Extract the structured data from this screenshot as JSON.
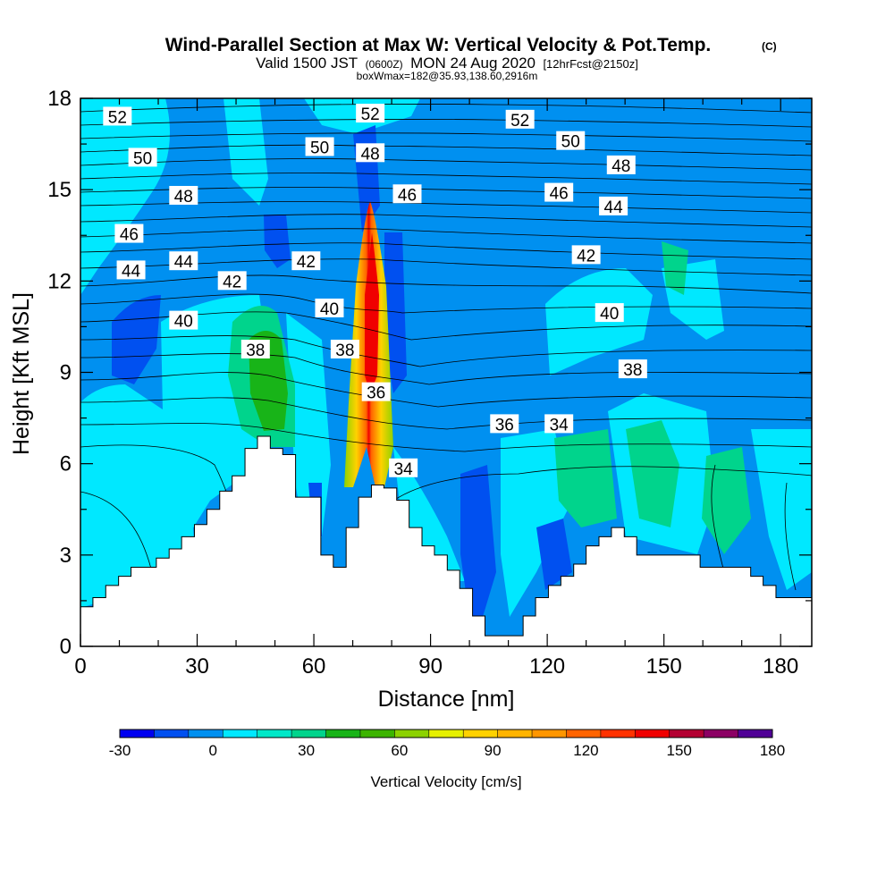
{
  "chart_data": {
    "type": "heatmap",
    "title": "Wind-Parallel Section at Max W: Vertical Velocity & Pot.Temp.",
    "title_mark": "(C)",
    "subtitle_parts": [
      "Valid 1500 JST",
      "(0600Z)",
      "MON 24 Aug 2020",
      "[12hrFcst@2150z]"
    ],
    "subtitle2": "boxWmax=182@35.93,138.60,2916m",
    "xlabel": "Distance [nm]",
    "ylabel": "Height [Kft MSL]",
    "xlim": [
      0,
      188
    ],
    "ylim": [
      0,
      18
    ],
    "x_ticks": [
      0,
      30,
      60,
      90,
      120,
      150,
      180
    ],
    "y_ticks": [
      0,
      3,
      6,
      9,
      12,
      15,
      18
    ],
    "colorbar": {
      "label": "Vertical Velocity [cm/s]",
      "range": [
        -30,
        180
      ],
      "tick_values": [
        -30,
        0,
        30,
        60,
        90,
        120,
        150,
        180
      ],
      "colors": [
        "#0000f0",
        "#0050f0",
        "#0090f0",
        "#00e8ff",
        "#00e8c8",
        "#00d48c",
        "#18b418",
        "#3cb400",
        "#8cd200",
        "#e6f000",
        "#ffd200",
        "#ffb400",
        "#ff9600",
        "#ff6400",
        "#ff3200",
        "#f00000",
        "#b40032",
        "#8c0064",
        "#500096"
      ]
    },
    "theta_labels": [
      {
        "value": "52",
        "x": 9.5,
        "y": 17.4
      },
      {
        "value": "52",
        "x": 74.5,
        "y": 17.5
      },
      {
        "value": "52",
        "x": 113,
        "y": 17.3
      },
      {
        "value": "50",
        "x": 16,
        "y": 16.05
      },
      {
        "value": "50",
        "x": 61.5,
        "y": 16.4
      },
      {
        "value": "48",
        "x": 74.5,
        "y": 16.2
      },
      {
        "value": "50",
        "x": 126,
        "y": 16.6
      },
      {
        "value": "48",
        "x": 139,
        "y": 15.8
      },
      {
        "value": "48",
        "x": 26.5,
        "y": 14.8
      },
      {
        "value": "46",
        "x": 84,
        "y": 14.85
      },
      {
        "value": "46",
        "x": 123,
        "y": 14.9
      },
      {
        "value": "44",
        "x": 137,
        "y": 14.45
      },
      {
        "value": "46",
        "x": 12.5,
        "y": 13.55
      },
      {
        "value": "44",
        "x": 26.5,
        "y": 12.65
      },
      {
        "value": "42",
        "x": 58,
        "y": 12.65
      },
      {
        "value": "42",
        "x": 130,
        "y": 12.85
      },
      {
        "value": "44",
        "x": 13,
        "y": 12.35
      },
      {
        "value": "42",
        "x": 39,
        "y": 12.0
      },
      {
        "value": "40",
        "x": 64,
        "y": 11.1
      },
      {
        "value": "40",
        "x": 26.5,
        "y": 10.7
      },
      {
        "value": "40",
        "x": 136,
        "y": 10.95
      },
      {
        "value": "38",
        "x": 45,
        "y": 9.75
      },
      {
        "value": "38",
        "x": 68,
        "y": 9.75
      },
      {
        "value": "38",
        "x": 142,
        "y": 9.1
      },
      {
        "value": "36",
        "x": 76,
        "y": 8.35
      },
      {
        "value": "36",
        "x": 109,
        "y": 7.3
      },
      {
        "value": "34",
        "x": 123,
        "y": 7.3
      },
      {
        "value": "34",
        "x": 83,
        "y": 5.85
      }
    ],
    "terrain_profile": [
      [
        0,
        1.3
      ],
      [
        3.2,
        1.6
      ],
      [
        6.5,
        2.0
      ],
      [
        9.8,
        2.3
      ],
      [
        13,
        2.6
      ],
      [
        19.5,
        2.9
      ],
      [
        22.8,
        3.2
      ],
      [
        26,
        3.6
      ],
      [
        29.3,
        4.0
      ],
      [
        32.5,
        4.5
      ],
      [
        35.8,
        5.1
      ],
      [
        39,
        5.6
      ],
      [
        42.3,
        6.5
      ],
      [
        45.5,
        6.9
      ],
      [
        48.8,
        6.5
      ],
      [
        52,
        6.3
      ],
      [
        55.3,
        4.9
      ],
      [
        58.5,
        4.9
      ],
      [
        61.8,
        3.0
      ],
      [
        65,
        2.6
      ],
      [
        68.3,
        3.9
      ],
      [
        71.5,
        4.9
      ],
      [
        74.8,
        5.3
      ],
      [
        78,
        5.2
      ],
      [
        81.3,
        4.8
      ],
      [
        84.5,
        3.9
      ],
      [
        87.8,
        3.3
      ],
      [
        91,
        3.0
      ],
      [
        94.3,
        2.5
      ],
      [
        97.5,
        1.9
      ],
      [
        100.8,
        1.0
      ],
      [
        104,
        0.35
      ],
      [
        110.5,
        0.35
      ],
      [
        113.8,
        1.0
      ],
      [
        117,
        1.6
      ],
      [
        120.3,
        2.0
      ],
      [
        123.5,
        2.3
      ],
      [
        126.8,
        2.7
      ],
      [
        130,
        3.3
      ],
      [
        133.3,
        3.6
      ],
      [
        136.5,
        3.9
      ],
      [
        139.8,
        3.6
      ],
      [
        143,
        3.0
      ],
      [
        159.3,
        2.6
      ],
      [
        172.3,
        2.3
      ],
      [
        175.5,
        2.0
      ],
      [
        178.8,
        1.6
      ],
      [
        188,
        1.6
      ]
    ]
  }
}
